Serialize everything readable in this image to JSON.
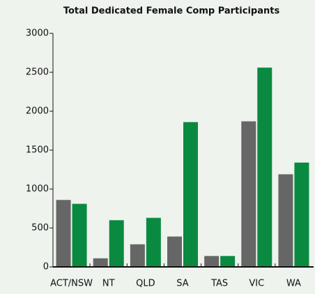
{
  "chart_data": {
    "type": "bar",
    "title": "Total Dedicated Female Comp Participants",
    "categories": [
      "ACT/NSW",
      "NT",
      "QLD",
      "SA",
      "TAS",
      "VIC",
      "WA"
    ],
    "series": [
      {
        "color": "#666666",
        "values": [
          860,
          110,
          290,
          390,
          140,
          1870,
          1190
        ]
      },
      {
        "color": "#0a8a40",
        "values": [
          810,
          600,
          630,
          1860,
          140,
          2560,
          1340
        ]
      }
    ],
    "ylim": [
      0,
      3000
    ],
    "yticks": [
      0,
      500,
      1000,
      1500,
      2000,
      2500,
      3000
    ]
  }
}
